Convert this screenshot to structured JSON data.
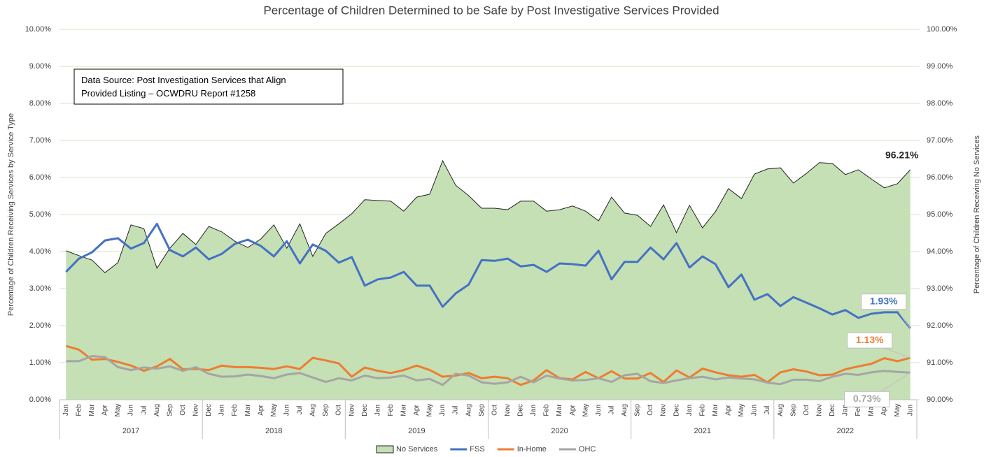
{
  "chart_data": {
    "type": "line",
    "title": "Percentage of Children Determined to be Safe by Post Investigative Services Provided",
    "y_label": "Percentage of Children Receiving Services by Service Type",
    "y2_label": "Percentage of Children Receiving No Services",
    "annotation": [
      "Data Source: Post Investigation Services that Align",
      "Provided Listing – OCWDRU Report #1258"
    ],
    "categories": [
      "Jan",
      "Feb",
      "Mar",
      "Apr",
      "May",
      "Jun",
      "Jul",
      "Aug",
      "Sep",
      "Oct",
      "Nov",
      "Dec",
      "Jan",
      "Feb",
      "Mar",
      "Apr",
      "May",
      "Jun",
      "Jul",
      "Aug",
      "Sep",
      "Oct",
      "Nov",
      "Dec",
      "Jan",
      "Feb",
      "Mar",
      "Apr",
      "May",
      "Jun",
      "Jul",
      "Aug",
      "Sep",
      "Oct",
      "Nov",
      "Dec",
      "Jan",
      "Feb",
      "Mar",
      "Apr",
      "May",
      "Jun",
      "Jul",
      "Aug",
      "Sep",
      "Oct",
      "Nov",
      "Dec",
      "Jan",
      "Feb",
      "Mar",
      "Apr",
      "May",
      "Jun",
      "Jul",
      "Aug",
      "Sep",
      "Oct",
      "Nov",
      "Dec",
      "Jan",
      "Feb",
      "Mar",
      "Apr",
      "May",
      "Jun"
    ],
    "years": [
      "2017",
      "2018",
      "2019",
      "2020",
      "2021",
      "2022"
    ],
    "ylim": [
      0,
      10
    ],
    "yticks": [
      {
        "value": 0,
        "label": "0.00%"
      },
      {
        "value": 1,
        "label": "1.00%"
      },
      {
        "value": 2,
        "label": "2.00%"
      },
      {
        "value": 3,
        "label": "3.00%"
      },
      {
        "value": 4,
        "label": "4.00%"
      },
      {
        "value": 5,
        "label": "5.00%"
      },
      {
        "value": 6,
        "label": "6.00%"
      },
      {
        "value": 7,
        "label": "7.00%"
      },
      {
        "value": 8,
        "label": "8.00%"
      },
      {
        "value": 9,
        "label": "9.00%"
      },
      {
        "value": 10,
        "label": "10.00%"
      }
    ],
    "y2lim": [
      90,
      100
    ],
    "y2ticks": [
      {
        "value": 90,
        "label": "90.00%"
      },
      {
        "value": 91,
        "label": "91.00%"
      },
      {
        "value": 92,
        "label": "92.00%"
      },
      {
        "value": 93,
        "label": "93.00%"
      },
      {
        "value": 94,
        "label": "94.00%"
      },
      {
        "value": 95,
        "label": "95.00%"
      },
      {
        "value": 96,
        "label": "96.00%"
      },
      {
        "value": 97,
        "label": "97.00%"
      },
      {
        "value": 98,
        "label": "98.00%"
      },
      {
        "value": 99,
        "label": "99.00%"
      },
      {
        "value": 100,
        "label": "100.00%"
      }
    ],
    "grid": true,
    "legend": "bottom",
    "series": [
      {
        "name": "No Services",
        "type": "area",
        "axis": "y2",
        "color": "#c5e0b4",
        "values": [
          94.02,
          93.89,
          93.77,
          93.43,
          93.7,
          94.72,
          94.62,
          93.55,
          94.09,
          94.49,
          94.19,
          94.68,
          94.53,
          94.28,
          94.11,
          94.34,
          94.72,
          94.09,
          94.75,
          93.87,
          94.49,
          94.75,
          95.02,
          95.4,
          95.38,
          95.36,
          95.09,
          95.47,
          95.55,
          96.45,
          95.79,
          95.51,
          95.17,
          95.17,
          95.13,
          95.36,
          95.36,
          95.09,
          95.13,
          95.23,
          95.09,
          94.83,
          95.47,
          95.04,
          94.98,
          94.68,
          95.26,
          94.51,
          95.25,
          94.64,
          95.08,
          95.7,
          95.43,
          96.09,
          96.23,
          96.26,
          95.85,
          96.11,
          96.4,
          96.38,
          96.08,
          96.21,
          95.96,
          95.72,
          95.83,
          96.21
        ],
        "value_labels": [
          null,
          null,
          null,
          null,
          null,
          null,
          null,
          null,
          null,
          null,
          null,
          null,
          null,
          null,
          null,
          null,
          null,
          null,
          null,
          null,
          null,
          null,
          null,
          null,
          null,
          null,
          null,
          null,
          null,
          null,
          null,
          null,
          null,
          null,
          null,
          null,
          null,
          null,
          null,
          null,
          null,
          null,
          null,
          null,
          null,
          null,
          null,
          null,
          null,
          null,
          null,
          null,
          null,
          null,
          null,
          null,
          null,
          null,
          null,
          null,
          null,
          null,
          null,
          null,
          null,
          "96.21%"
        ]
      },
      {
        "name": "FSS",
        "color": "#4472c4",
        "values": [
          3.45,
          3.81,
          3.98,
          4.3,
          4.36,
          4.08,
          4.23,
          4.75,
          4.04,
          3.87,
          4.11,
          3.79,
          3.94,
          4.21,
          4.32,
          4.15,
          3.87,
          4.28,
          3.68,
          4.19,
          4.02,
          3.7,
          3.85,
          3.08,
          3.25,
          3.3,
          3.45,
          3.08,
          3.08,
          2.51,
          2.87,
          3.11,
          3.77,
          3.75,
          3.81,
          3.6,
          3.64,
          3.45,
          3.68,
          3.66,
          3.62,
          4.02,
          3.25,
          3.72,
          3.72,
          4.11,
          3.79,
          4.23,
          3.57,
          3.87,
          3.66,
          3.04,
          3.38,
          2.7,
          2.85,
          2.53,
          2.77,
          2.62,
          2.47,
          2.3,
          2.42,
          2.21,
          2.32,
          2.36,
          2.36,
          1.93
        ],
        "value_labels": [
          null,
          null,
          null,
          null,
          null,
          null,
          null,
          null,
          null,
          null,
          null,
          null,
          null,
          null,
          null,
          null,
          null,
          null,
          null,
          null,
          null,
          null,
          null,
          null,
          null,
          null,
          null,
          null,
          null,
          null,
          null,
          null,
          null,
          null,
          null,
          null,
          null,
          null,
          null,
          null,
          null,
          null,
          null,
          null,
          null,
          null,
          null,
          null,
          null,
          null,
          null,
          null,
          null,
          null,
          null,
          null,
          null,
          null,
          null,
          null,
          null,
          null,
          null,
          null,
          null,
          "1.93%"
        ]
      },
      {
        "name": "In-Home",
        "color": "#ed7d31",
        "values": [
          1.45,
          1.35,
          1.08,
          1.1,
          1.02,
          0.92,
          0.78,
          0.9,
          1.1,
          0.82,
          0.83,
          0.8,
          0.92,
          0.88,
          0.88,
          0.86,
          0.83,
          0.9,
          0.83,
          1.13,
          1.06,
          0.98,
          0.62,
          0.87,
          0.78,
          0.72,
          0.8,
          0.92,
          0.8,
          0.62,
          0.65,
          0.72,
          0.58,
          0.62,
          0.58,
          0.4,
          0.52,
          0.8,
          0.58,
          0.55,
          0.75,
          0.58,
          0.77,
          0.57,
          0.57,
          0.72,
          0.48,
          0.79,
          0.6,
          0.84,
          0.74,
          0.66,
          0.62,
          0.67,
          0.47,
          0.74,
          0.82,
          0.76,
          0.66,
          0.68,
          0.82,
          0.9,
          0.97,
          1.12,
          1.04,
          1.13
        ],
        "value_labels": [
          null,
          null,
          null,
          null,
          null,
          null,
          null,
          null,
          null,
          null,
          null,
          null,
          null,
          null,
          null,
          null,
          null,
          null,
          null,
          null,
          null,
          null,
          null,
          null,
          null,
          null,
          null,
          null,
          null,
          null,
          null,
          null,
          null,
          null,
          null,
          null,
          null,
          null,
          null,
          null,
          null,
          null,
          null,
          null,
          null,
          null,
          null,
          null,
          null,
          null,
          null,
          null,
          null,
          null,
          null,
          null,
          null,
          null,
          null,
          null,
          null,
          null,
          null,
          null,
          null,
          "1.13%"
        ]
      },
      {
        "name": "OHC",
        "color": "#a5a5a5",
        "values": [
          1.04,
          1.04,
          1.18,
          1.15,
          0.88,
          0.8,
          0.87,
          0.84,
          0.9,
          0.78,
          0.88,
          0.7,
          0.62,
          0.63,
          0.68,
          0.64,
          0.58,
          0.68,
          0.72,
          0.6,
          0.48,
          0.58,
          0.52,
          0.65,
          0.58,
          0.6,
          0.65,
          0.52,
          0.56,
          0.4,
          0.7,
          0.65,
          0.47,
          0.43,
          0.47,
          0.62,
          0.47,
          0.65,
          0.57,
          0.52,
          0.53,
          0.58,
          0.48,
          0.66,
          0.7,
          0.5,
          0.45,
          0.52,
          0.58,
          0.62,
          0.55,
          0.6,
          0.57,
          0.55,
          0.46,
          0.42,
          0.54,
          0.54,
          0.5,
          0.62,
          0.7,
          0.67,
          0.74,
          0.78,
          0.75,
          0.73
        ],
        "value_labels": [
          null,
          null,
          null,
          null,
          null,
          null,
          null,
          null,
          null,
          null,
          null,
          null,
          null,
          null,
          null,
          null,
          null,
          null,
          null,
          null,
          null,
          null,
          null,
          null,
          null,
          null,
          null,
          null,
          null,
          null,
          null,
          null,
          null,
          null,
          null,
          null,
          null,
          null,
          null,
          null,
          null,
          null,
          null,
          null,
          null,
          null,
          null,
          null,
          null,
          null,
          null,
          null,
          null,
          null,
          null,
          null,
          null,
          null,
          null,
          null,
          null,
          null,
          null,
          null,
          null,
          "0.73%"
        ]
      }
    ]
  }
}
